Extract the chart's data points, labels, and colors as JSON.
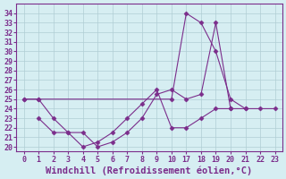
{
  "background_color": "#d6eef2",
  "grid_color": "#b0cdd4",
  "line_color": "#7b2d8b",
  "marker_color": "#7b2d8b",
  "xtick_labels": [
    "0",
    "1",
    "2",
    "3",
    "4",
    "5",
    "6",
    "7",
    "8",
    "9",
    "10",
    "17",
    "18",
    "19",
    "20",
    "21",
    "22",
    "23"
  ],
  "yticks": [
    20,
    21,
    22,
    23,
    24,
    25,
    26,
    27,
    28,
    29,
    30,
    31,
    32,
    33,
    34
  ],
  "series": [
    {
      "xi": [
        0,
        1,
        10,
        11,
        12,
        13,
        14,
        15
      ],
      "y": [
        25,
        25,
        25,
        34,
        33,
        30,
        25,
        24
      ]
    },
    {
      "xi": [
        0,
        1,
        2,
        3,
        4,
        5,
        6,
        7,
        8,
        9,
        10,
        11,
        12,
        13,
        14
      ],
      "y": [
        25,
        25,
        23,
        21.5,
        21.5,
        20,
        20.5,
        21.5,
        23,
        25.5,
        26,
        25,
        25.5,
        33,
        24
      ]
    },
    {
      "xi": [
        1,
        2,
        3,
        4,
        5,
        6,
        7,
        8,
        9,
        10,
        11,
        12,
        13,
        14,
        15,
        16,
        17
      ],
      "y": [
        23,
        21.5,
        21.5,
        20,
        20.5,
        21.5,
        23,
        24.5,
        26,
        22,
        22,
        23,
        24,
        24,
        24,
        24,
        24
      ]
    }
  ],
  "xlim": [
    -0.5,
    17.5
  ],
  "ylim": [
    19.5,
    35.0
  ],
  "xlabel": "Windchill (Refroidissement éolien,°C)",
  "xlabel_fontsize": 7.5,
  "tick_fontsize": 6,
  "font_family": "monospace"
}
